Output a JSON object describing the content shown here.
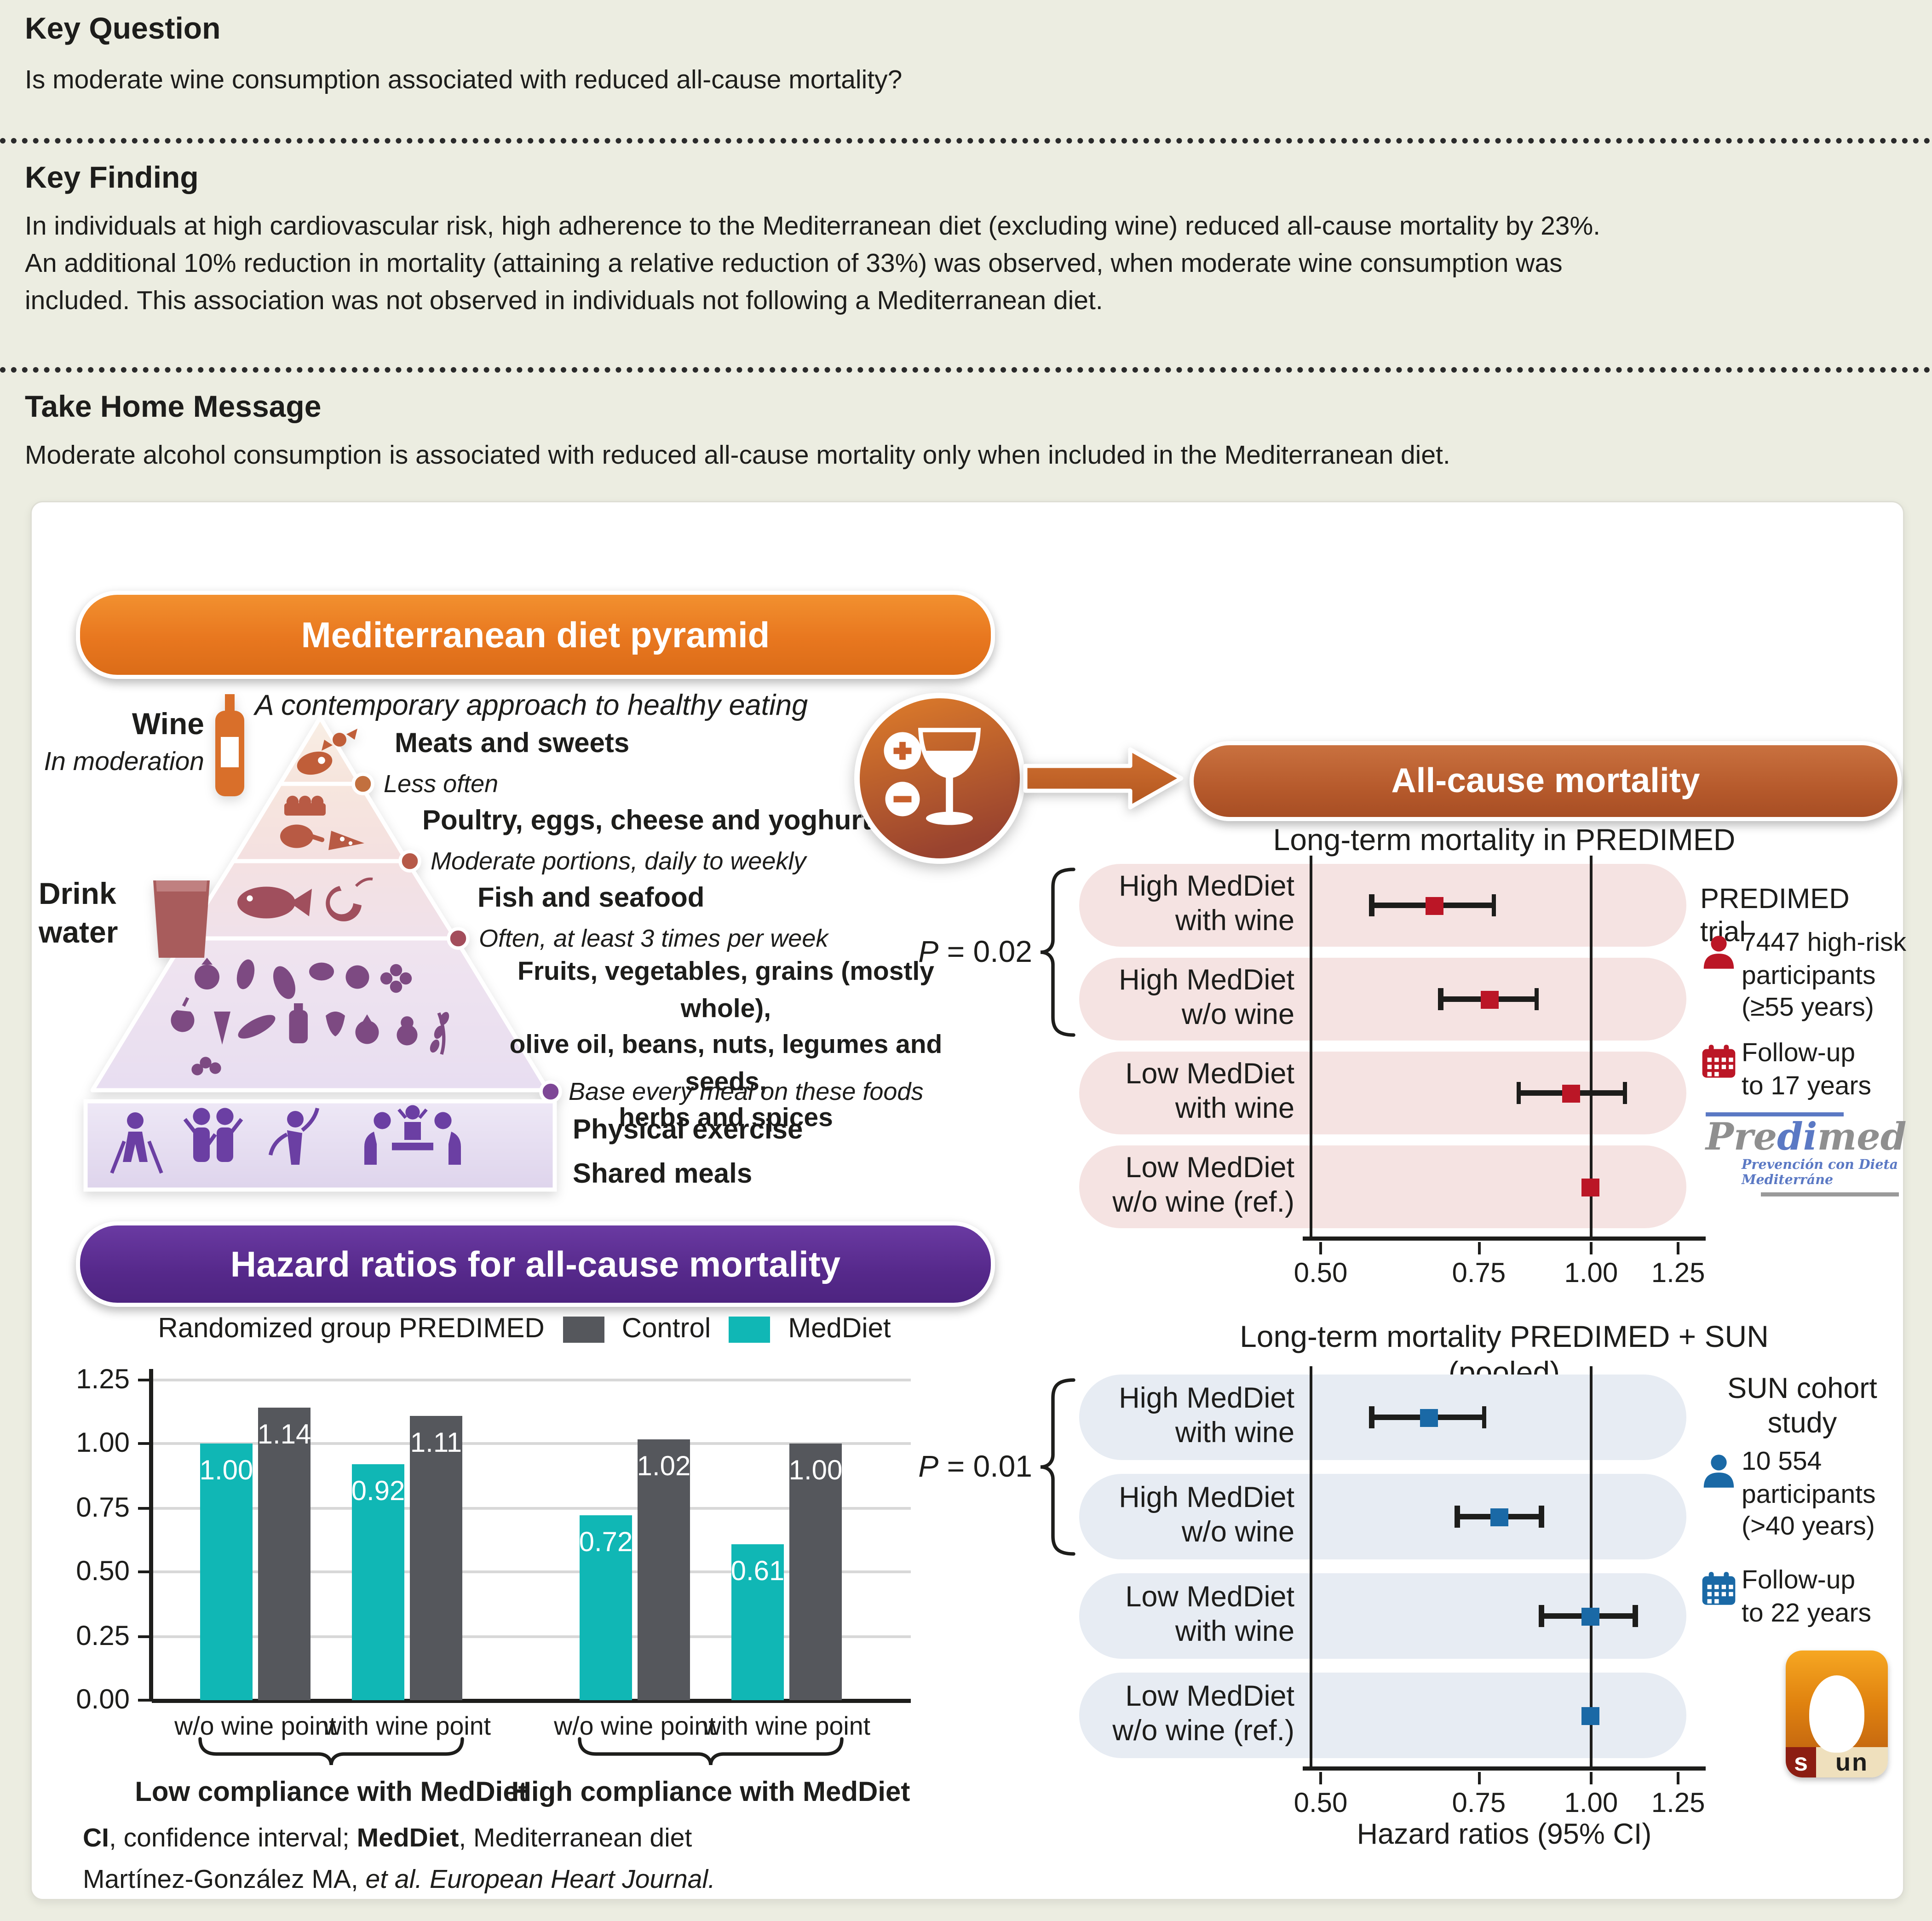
{
  "header": {
    "key_question_title": "Key Question",
    "key_question_text": "Is moderate wine consumption associated with reduced all-cause mortality?",
    "key_finding_title": "Key Finding",
    "key_finding_text": "In individuals at high cardiovascular risk, high adherence to the Mediterranean diet (excluding wine) reduced all-cause mortality by 23%.\nAn additional 10% reduction in mortality (attaining a relative reduction of 33%) was observed, when moderate wine consumption was\nincluded. This association was not observed in individuals not following a Mediterranean diet.",
    "take_home_title": "Take Home Message",
    "take_home_text": "Moderate alcohol consumption is associated with reduced all-cause mortality only when included in the Mediterranean diet."
  },
  "pyramid": {
    "header": "Mediterranean diet pyramid",
    "subtitle": "A contemporary approach to healthy eating",
    "wine_label": "Wine",
    "wine_note": "In moderation",
    "water_label": "Drink\nwater",
    "levels": [
      {
        "label": "Meats and sweets",
        "note": "Less often"
      },
      {
        "label": "Poultry, eggs, cheese and yoghurt",
        "note": "Moderate portions, daily to weekly"
      },
      {
        "label": "Fish and seafood",
        "note": "Often, at least 3 times per week"
      },
      {
        "label": "Fruits, vegetables, grains (mostly whole),\nolive oil, beans, nuts, legumes and seeds,\nherbs and spices",
        "note": "Base every meal on these foods"
      },
      {
        "label": "Physical exercise"
      },
      {
        "label": "Shared meals"
      }
    ]
  },
  "hazard_section": {
    "header": "Hazard ratios for all-cause mortality",
    "legend_title": "Randomized group PREDIMED",
    "footnote_segments": [
      {
        "bold": "CI"
      },
      {
        "text": ", confidence interval; "
      },
      {
        "bold": "MedDiet"
      },
      {
        "text": ", Mediterranean diet"
      }
    ],
    "citation_segments": [
      {
        "text": "Martínez-González MA, "
      },
      {
        "italic": "et al. European Heart Journal."
      }
    ]
  },
  "mortality_section": {
    "header": "All-cause mortality"
  },
  "predimed_info": {
    "title": "PREDIMED trial",
    "participants": "7447 high-risk\nparticipants\n(≥55 years)",
    "followup": "Follow-up\nto 17 years",
    "logo_parts": [
      "Pre",
      "di",
      "med"
    ],
    "logo_sub": "Prevención con Dieta Mediterráne"
  },
  "sun_info": {
    "title": "SUN cohort\nstudy",
    "participants": "10 554\nparticipants\n(>40 years)",
    "followup": "Follow-up\nto 22 years",
    "logo_s": "s",
    "logo_un": "un"
  },
  "chart_data": [
    {
      "type": "bar",
      "title": "Randomized group PREDIMED",
      "categories": [
        "w/o wine point",
        "with wine point",
        "w/o wine point",
        "with wine point"
      ],
      "group_labels": [
        "Low compliance with MedDiet",
        "High compliance with MedDiet"
      ],
      "series": [
        {
          "name": "MedDiet",
          "color": "#10b7b5",
          "values": [
            1.0,
            0.92,
            0.72,
            0.61
          ]
        },
        {
          "name": "Control",
          "color": "#55575c",
          "values": [
            1.14,
            1.11,
            1.02,
            1.0
          ]
        }
      ],
      "ylabel": "",
      "ylim": [
        0,
        1.25
      ],
      "yticks": [
        0.0,
        0.25,
        0.5,
        0.75,
        1.0,
        1.25
      ],
      "grid": true,
      "legend_position": "top"
    },
    {
      "type": "forest",
      "title": "Long-term mortality in PREDIMED",
      "p_label": "P = 0.02",
      "xscale": "log",
      "xticks": [
        0.5,
        0.75,
        1.0,
        1.25
      ],
      "theme": {
        "row_bg": "#f5e3e2",
        "marker": "#bb1626"
      },
      "rows": [
        {
          "label_line1": "High MedDiet",
          "label_line2": "with wine",
          "hr": 0.67,
          "ci_low": 0.57,
          "ci_high": 0.78
        },
        {
          "label_line1": "High MedDiet",
          "label_line2": "w/o wine",
          "hr": 0.77,
          "ci_low": 0.68,
          "ci_high": 0.87
        },
        {
          "label_line1": "Low MedDiet",
          "label_line2": "with wine",
          "hr": 0.95,
          "ci_low": 0.83,
          "ci_high": 1.09
        },
        {
          "label_line1": "Low MedDiet",
          "label_line2": "w/o wine (ref.)",
          "hr": 1.0,
          "ref": true
        }
      ]
    },
    {
      "type": "forest",
      "title": "Long-term mortality PREDIMED + SUN (pooled)",
      "p_label": "P = 0.01",
      "xscale": "log",
      "xticks": [
        0.5,
        0.75,
        1.0,
        1.25
      ],
      "xlabel": "Hazard ratios (95% CI)",
      "theme": {
        "row_bg": "#e7ecf3",
        "marker": "#1a69a6"
      },
      "rows": [
        {
          "label_line1": "High MedDiet",
          "label_line2": "with wine",
          "hr": 0.66,
          "ci_low": 0.57,
          "ci_high": 0.76
        },
        {
          "label_line1": "High MedDiet",
          "label_line2": "w/o wine",
          "hr": 0.79,
          "ci_low": 0.71,
          "ci_high": 0.88
        },
        {
          "label_line1": "Low MedDiet",
          "label_line2": "with wine",
          "hr": 1.0,
          "ci_low": 0.88,
          "ci_high": 1.12
        },
        {
          "label_line1": "Low MedDiet",
          "label_line2": "w/o wine (ref.)",
          "hr": 1.0,
          "ref": true
        }
      ]
    }
  ],
  "colors": {
    "background": "#ecede1",
    "panel": "#ffffff",
    "orange_header": "#e8771f",
    "rust_header": "#b65a2c",
    "purple_header": "#56298b",
    "meddiet_teal": "#10b7b5",
    "control_gray": "#55575c",
    "predimed_red": "#bb1626",
    "sun_blue": "#1a69a6",
    "pink_row": "#f5e3e2",
    "blue_row": "#e7ecf3"
  }
}
